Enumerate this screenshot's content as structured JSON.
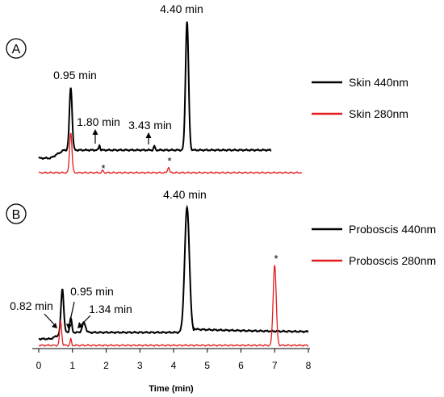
{
  "chart_data": {
    "type": "line",
    "xlabel": "Time (min)",
    "xlim": [
      0,
      8
    ],
    "xticks": [
      0,
      1,
      2,
      3,
      4,
      5,
      6,
      7,
      8
    ],
    "ylabel": "",
    "grid": false,
    "legend_placement": "right",
    "panels": [
      {
        "label": "A",
        "series": [
          {
            "name": "Skin 440nm",
            "color": "#000000",
            "baseline": 0.1,
            "peaks": [
              {
                "t": 0.95,
                "h": 0.78,
                "w": 0.04
              },
              {
                "t": 1.8,
                "h": 0.06,
                "w": 0.02
              },
              {
                "t": 3.43,
                "h": 0.05,
                "w": 0.02
              },
              {
                "t": 4.4,
                "h": 1.6,
                "w": 0.045
              }
            ]
          },
          {
            "name": "Skin 280nm",
            "color": "#e41a1c",
            "baseline": 0.0,
            "peaks": [
              {
                "t": 0.95,
                "h": 0.5,
                "w": 0.035
              },
              {
                "t": 1.9,
                "h": 0.03,
                "w": 0.02
              },
              {
                "t": 3.85,
                "h": 0.07,
                "w": 0.025
              }
            ]
          }
        ],
        "annotations": [
          {
            "text": "0.95 min",
            "t": 0.95
          },
          {
            "text": "1.80 min",
            "t": 1.8
          },
          {
            "text": "3.43 min",
            "t": 3.43
          },
          {
            "text": "4.40 min",
            "t": 4.4
          },
          {
            "text": "*",
            "t": 1.9
          },
          {
            "text": "*",
            "t": 3.85
          }
        ]
      },
      {
        "label": "B",
        "series": [
          {
            "name": "Proboscis 440nm",
            "color": "#000000",
            "baseline": 0.08,
            "peaks": [
              {
                "t": 0.7,
                "h": 0.55,
                "w": 0.04
              },
              {
                "t": 0.95,
                "h": 0.18,
                "w": 0.03
              },
              {
                "t": 1.34,
                "h": 0.12,
                "w": 0.05
              },
              {
                "t": 4.4,
                "h": 1.55,
                "w": 0.07
              }
            ]
          },
          {
            "name": "Proboscis 280nm",
            "color": "#e41a1c",
            "baseline": 0.0,
            "peaks": [
              {
                "t": 0.65,
                "h": 0.3,
                "w": 0.03
              },
              {
                "t": 0.95,
                "h": 0.08,
                "w": 0.02
              },
              {
                "t": 7.0,
                "h": 1.0,
                "w": 0.045
              }
            ]
          }
        ],
        "annotations": [
          {
            "text": "0.82 min",
            "t": 0.82
          },
          {
            "text": "0.95 min",
            "t": 0.95
          },
          {
            "text": "1.34 min",
            "t": 1.34
          },
          {
            "text": "4.40 min",
            "t": 4.4
          },
          {
            "text": "*",
            "t": 7.0
          }
        ]
      }
    ]
  }
}
